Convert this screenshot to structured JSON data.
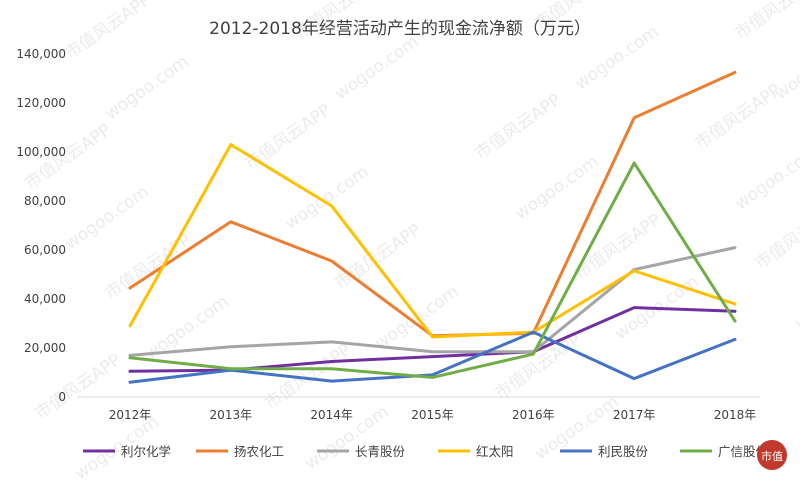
{
  "chart_data": {
    "type": "line",
    "title": "2012-2018年经营活动产生的现金流净额（万元）",
    "xlabel": "",
    "ylabel": "",
    "categories": [
      "2012年",
      "2013年",
      "2014年",
      "2015年",
      "2016年",
      "2017年",
      "2018年"
    ],
    "ylim": [
      0,
      140000
    ],
    "yticks": [
      0,
      20000,
      40000,
      60000,
      80000,
      100000,
      120000,
      140000
    ],
    "ytick_labels": [
      "0",
      "20,000",
      "40,000",
      "60,000",
      "80,000",
      "100,000",
      "120,000",
      "140,000"
    ],
    "grid": false,
    "legend_position": "bottom",
    "series": [
      {
        "name": "利尔化学",
        "color": "#7030a0",
        "values": [
          10500,
          11000,
          14500,
          16500,
          18500,
          36500,
          35000
        ]
      },
      {
        "name": "扬农化工",
        "color": "#ed7d31",
        "values": [
          44500,
          71500,
          55500,
          25000,
          26000,
          114000,
          132500
        ]
      },
      {
        "name": "长青股份",
        "color": "#a5a5a5",
        "values": [
          17000,
          20500,
          22500,
          18500,
          18500,
          52000,
          61000
        ]
      },
      {
        "name": "红太阳",
        "color": "#ffc000",
        "values": [
          29000,
          103000,
          78000,
          24500,
          26500,
          51500,
          38000
        ]
      },
      {
        "name": "利民股份",
        "color": "#4472c4",
        "values": [
          6000,
          11000,
          6500,
          9000,
          26500,
          7500,
          23500
        ]
      },
      {
        "name": "广信股份",
        "color": "#70ad47",
        "values": [
          16000,
          11500,
          11500,
          8000,
          17500,
          95500,
          31000
        ]
      }
    ]
  },
  "watermark": {
    "text": "市值风云APP",
    "url_text": "wogoo.com",
    "logo_text": "市值"
  }
}
